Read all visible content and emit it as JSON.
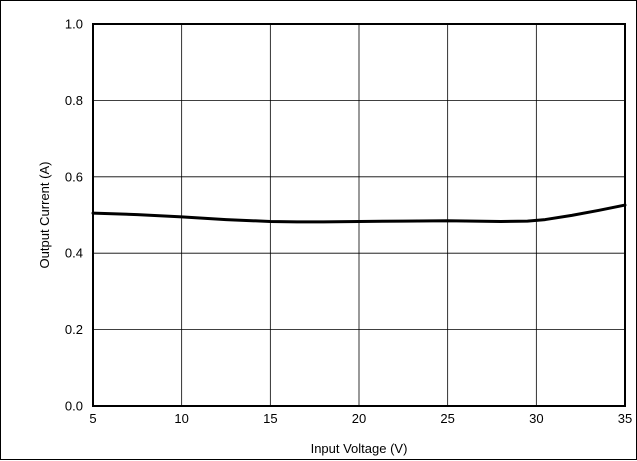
{
  "chart_data": {
    "type": "line",
    "xlabel": "Input Voltage (V)",
    "ylabel": "Output Current (A)",
    "xlim": [
      5,
      35
    ],
    "ylim": [
      0,
      1.0
    ],
    "x_ticks": [
      "5",
      "10",
      "15",
      "20",
      "25",
      "30",
      "35"
    ],
    "y_ticks": [
      "0.0",
      "0.2",
      "0.4",
      "0.6",
      "0.8",
      "1.0"
    ],
    "grid": true,
    "series": [
      {
        "color": "#000000",
        "x": [
          5,
          7.5,
          10,
          12.5,
          15,
          16.5,
          18,
          20,
          22.5,
          25,
          26.5,
          28,
          29.5,
          30.5,
          32,
          33.5,
          35
        ],
        "y": [
          0.505,
          0.501,
          0.495,
          0.488,
          0.483,
          0.482,
          0.482,
          0.483,
          0.484,
          0.485,
          0.484,
          0.483,
          0.484,
          0.488,
          0.499,
          0.512,
          0.526
        ]
      }
    ]
  }
}
